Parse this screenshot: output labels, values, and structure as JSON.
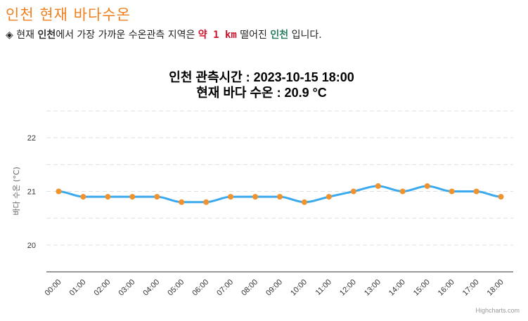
{
  "page": {
    "title": "인천 현재 바다수온",
    "info": {
      "bullet": "◈",
      "prefix": "현재",
      "location": "인천",
      "middle": "에서 가장 가까운 수온관측 지역은",
      "distance": "약 1 km",
      "suffix1": "떨어진",
      "station": "인천",
      "suffix2": "입니다."
    }
  },
  "chart_data": {
    "type": "line",
    "title": "인천 관측시간 : 2023-10-15 18:00",
    "subtitle": "현재 바다 수온 : 20.9 °C",
    "xlabel": "",
    "ylabel": "바다 수온 (°C)",
    "ylim": [
      19.5,
      22.5
    ],
    "yticks": [
      20,
      21,
      22
    ],
    "grid": true,
    "categories": [
      "00:00",
      "01:00",
      "02:00",
      "03:00",
      "04:00",
      "05:00",
      "06:00",
      "07:00",
      "08:00",
      "09:00",
      "10:00",
      "11:00",
      "12:00",
      "13:00",
      "14:00",
      "15:00",
      "16:00",
      "17:00",
      "18:00"
    ],
    "series": [
      {
        "name": "바다 수온",
        "values": [
          21.0,
          20.9,
          20.9,
          20.9,
          20.9,
          20.8,
          20.8,
          20.9,
          20.9,
          20.9,
          20.8,
          20.9,
          21.0,
          21.1,
          21.0,
          21.1,
          21.0,
          21.0,
          20.9
        ]
      }
    ],
    "line_color": "#3aa9ee",
    "marker_color": "#f0922e",
    "credits": "Highcharts.com"
  }
}
